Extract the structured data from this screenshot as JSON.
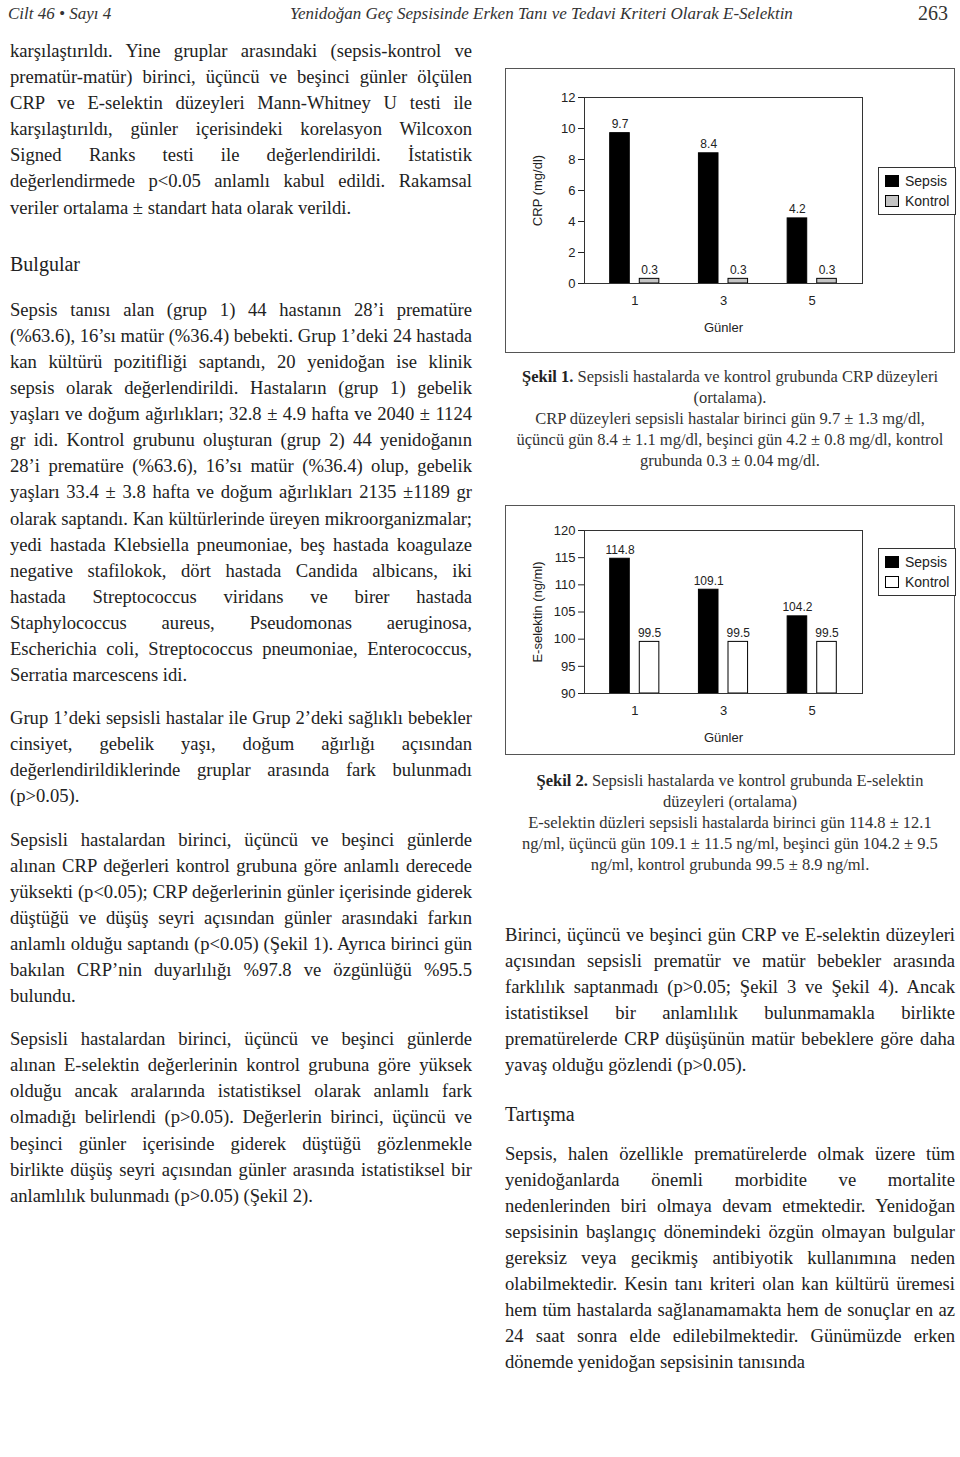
{
  "header": {
    "left": "Cilt 46 • Sayı 4",
    "title": "Yenidoğan Geç Sepsisinde Erken Tanı ve Tedavi Kriteri Olarak E-Selektin",
    "page": "263"
  },
  "left_column": [
    {
      "paragraph": "karşılaştırıldı. Yine gruplar arasındaki (sepsis-kontrol ve prematür-matür) birinci, üçüncü ve beşinci günler ölçülen CRP ve E-selektin düzeyleri Mann-Whitney U testi ile karşılaştırıldı, günler içerisindeki korelasyon Wilcoxon Signed Ranks testi ile değerlendirildi. İstatistik değerlendirmede p<0.05 anlamlı kabul edildi. Rakamsal veriler ortalama ± standart hata olarak verildi."
    },
    {
      "heading": "Bulgular"
    },
    {
      "paragraph": "Sepsis tanısı alan (grup 1) 44 hastanın 28’i prematüre (%63.6), 16’sı matür (%36.4) bebekti. Grup 1’deki 24 hastada kan kültürü pozitifliği saptandı, 20 yenidoğan ise klinik sepsis olarak değerlendirildi. Hastaların (grup 1) gebelik yaşları ve doğum ağırlıkları; 32.8 ± 4.9 hafta ve 2040 ± 1124 gr idi. Kontrol grubunu oluşturan (grup 2) 44 yenidoğanın 28’i prematüre (%63.6), 16’sı matür (%36.4) olup, gebelik yaşları 33.4 ± 3.8 hafta ve doğum ağırlıkları 2135 ±1189 gr olarak saptandı. Kan kültürlerinde üreyen mikroorganizmalar; yedi hastada Klebsiella pneumoniae, beş hastada koagulaze negative stafilokok, dört hastada Candida albicans, iki hastada Streptococcus viridans ve birer hastada Staphylococcus aureus, Pseudomonas aeruginosa, Escherichia coli, Streptococcus pneumoniae, Enterococcus, Serratia marcescens idi."
    },
    {
      "paragraph": "Grup 1’deki sepsisli hastalar ile Grup 2’deki sağlıklı bebekler cinsiyet, gebelik yaşı, doğum ağırlığı açısından değerlendirildiklerinde gruplar arasında fark bulunmadı (p>0.05)."
    },
    {
      "paragraph": "Sepsisli hastalardan birinci, üçüncü ve beşinci günlerde alınan CRP değerleri kontrol grubuna göre anlamlı derecede yüksekti (p<0.05); CRP değerlerinin günler içerisinde giderek düştüğü ve düşüş seyri açısından günler arasındaki farkın anlamlı olduğu saptandı (p<0.05) (Şekil 1). Ayrıca birinci gün bakılan CRP’nin duyarlılığı %97.8 ve özgünlüğü %95.5 bulundu."
    },
    {
      "paragraph": "Sepsisli hastalardan birinci, üçüncü ve beşinci günlerde alınan E-selektin değerlerinin kontrol grubuna göre yüksek olduğu ancak aralarında istatistiksel olarak anlamlı fark olmadığı belirlendi (p>0.05). Değerlerin birinci, üçüncü ve beşinci günler içerisinde giderek düştüğü gözlenmekle birlikte düşüş seyri açısından günler arasında istatistiksel bir anlamlılık bulunmadı (p>0.05) (Şekil 2)."
    }
  ],
  "chart_data": [
    {
      "type": "bar",
      "ylabel": "CRP (mg/dl)",
      "xlabel": "Günler",
      "categories": [
        "1",
        "3",
        "5"
      ],
      "series": [
        {
          "name": "Sepsis",
          "color": "#000000",
          "values": [
            9.7,
            8.4,
            4.2
          ]
        },
        {
          "name": "Kontrol",
          "color": "#c4c4c4",
          "values": [
            0.3,
            0.3,
            0.3
          ]
        }
      ],
      "ylim": [
        0,
        12
      ],
      "yticks": [
        0,
        2,
        4,
        6,
        8,
        10,
        12
      ],
      "legend": "right",
      "data_labels": true,
      "figure_label": "Şekil 1.",
      "caption": "Sepsisli hastalarda ve kontrol grubunda CRP düzeyleri (ortalama).",
      "caption_detail": "CRP düzeyleri sepsisli hastalar birinci gün 9.7 ± 1.3 mg/dl, üçüncü gün 8.4 ± 1.1 mg/dl, beşinci gün 4.2 ± 0.8 mg/dl, kontrol grubunda 0.3 ± 0.04 mg/dl."
    },
    {
      "type": "bar",
      "ylabel": "E-selektin (ng/ml)",
      "xlabel": "Günler",
      "categories": [
        "1",
        "3",
        "5"
      ],
      "series": [
        {
          "name": "Sepsis",
          "color": "#000000",
          "values": [
            114.8,
            109.1,
            104.2
          ]
        },
        {
          "name": "Kontrol",
          "color": "#ffffff",
          "values": [
            99.5,
            99.5,
            99.5
          ]
        }
      ],
      "ylim": [
        90,
        120
      ],
      "yticks": [
        90,
        95,
        100,
        105,
        110,
        115,
        120
      ],
      "legend": "right",
      "data_labels": true,
      "figure_label": "Şekil 2.",
      "caption": "Sepsisli hastalarda ve kontrol grubunda E-selektin düzeyleri (ortalama)",
      "caption_detail": "E-selektin düzleri sepsisli hastalarda birinci gün 114.8 ± 12.1 ng/ml, üçüncü gün 109.1 ± 11.5 ng/ml, beşinci gün 104.2 ± 9.5 ng/ml, kontrol grubunda 99.5 ± 8.9 ng/ml."
    }
  ],
  "right_column": [
    {
      "paragraph": "Birinci, üçüncü ve beşinci gün CRP ve E-selektin düzeyleri açısından sepsisli prematür ve matür bebekler arasında farklılık saptanmadı (p>0.05; Şekil 3 ve Şekil 4). Ancak istatistiksel bir anlamlılık bulunmamakla birlikte prematürelerde CRP düşüşünün matür bebeklere göre daha yavaş olduğu gözlendi (p>0.05)."
    },
    {
      "heading": "Tartışma"
    },
    {
      "paragraph": "Sepsis, halen özellikle prematürelerde olmak üzere tüm yenidoğanlarda önemli morbidite ve mortalite nedenlerinden biri olmaya devam etmektedir. Yenidoğan sepsisinin başlangıç dönemindeki özgün olmayan bulgular gereksiz veya gecikmiş antibiyotik kullanımına neden olabilmektedir. Kesin tanı kriteri olan kan kültürü üremesi hem tüm hastalarda sağlanamamakta hem de sonuçlar en az 24 saat sonra elde edilebilmektedir. Günümüzde erken dönemde yenidoğan sepsisinin tanısında"
    }
  ]
}
